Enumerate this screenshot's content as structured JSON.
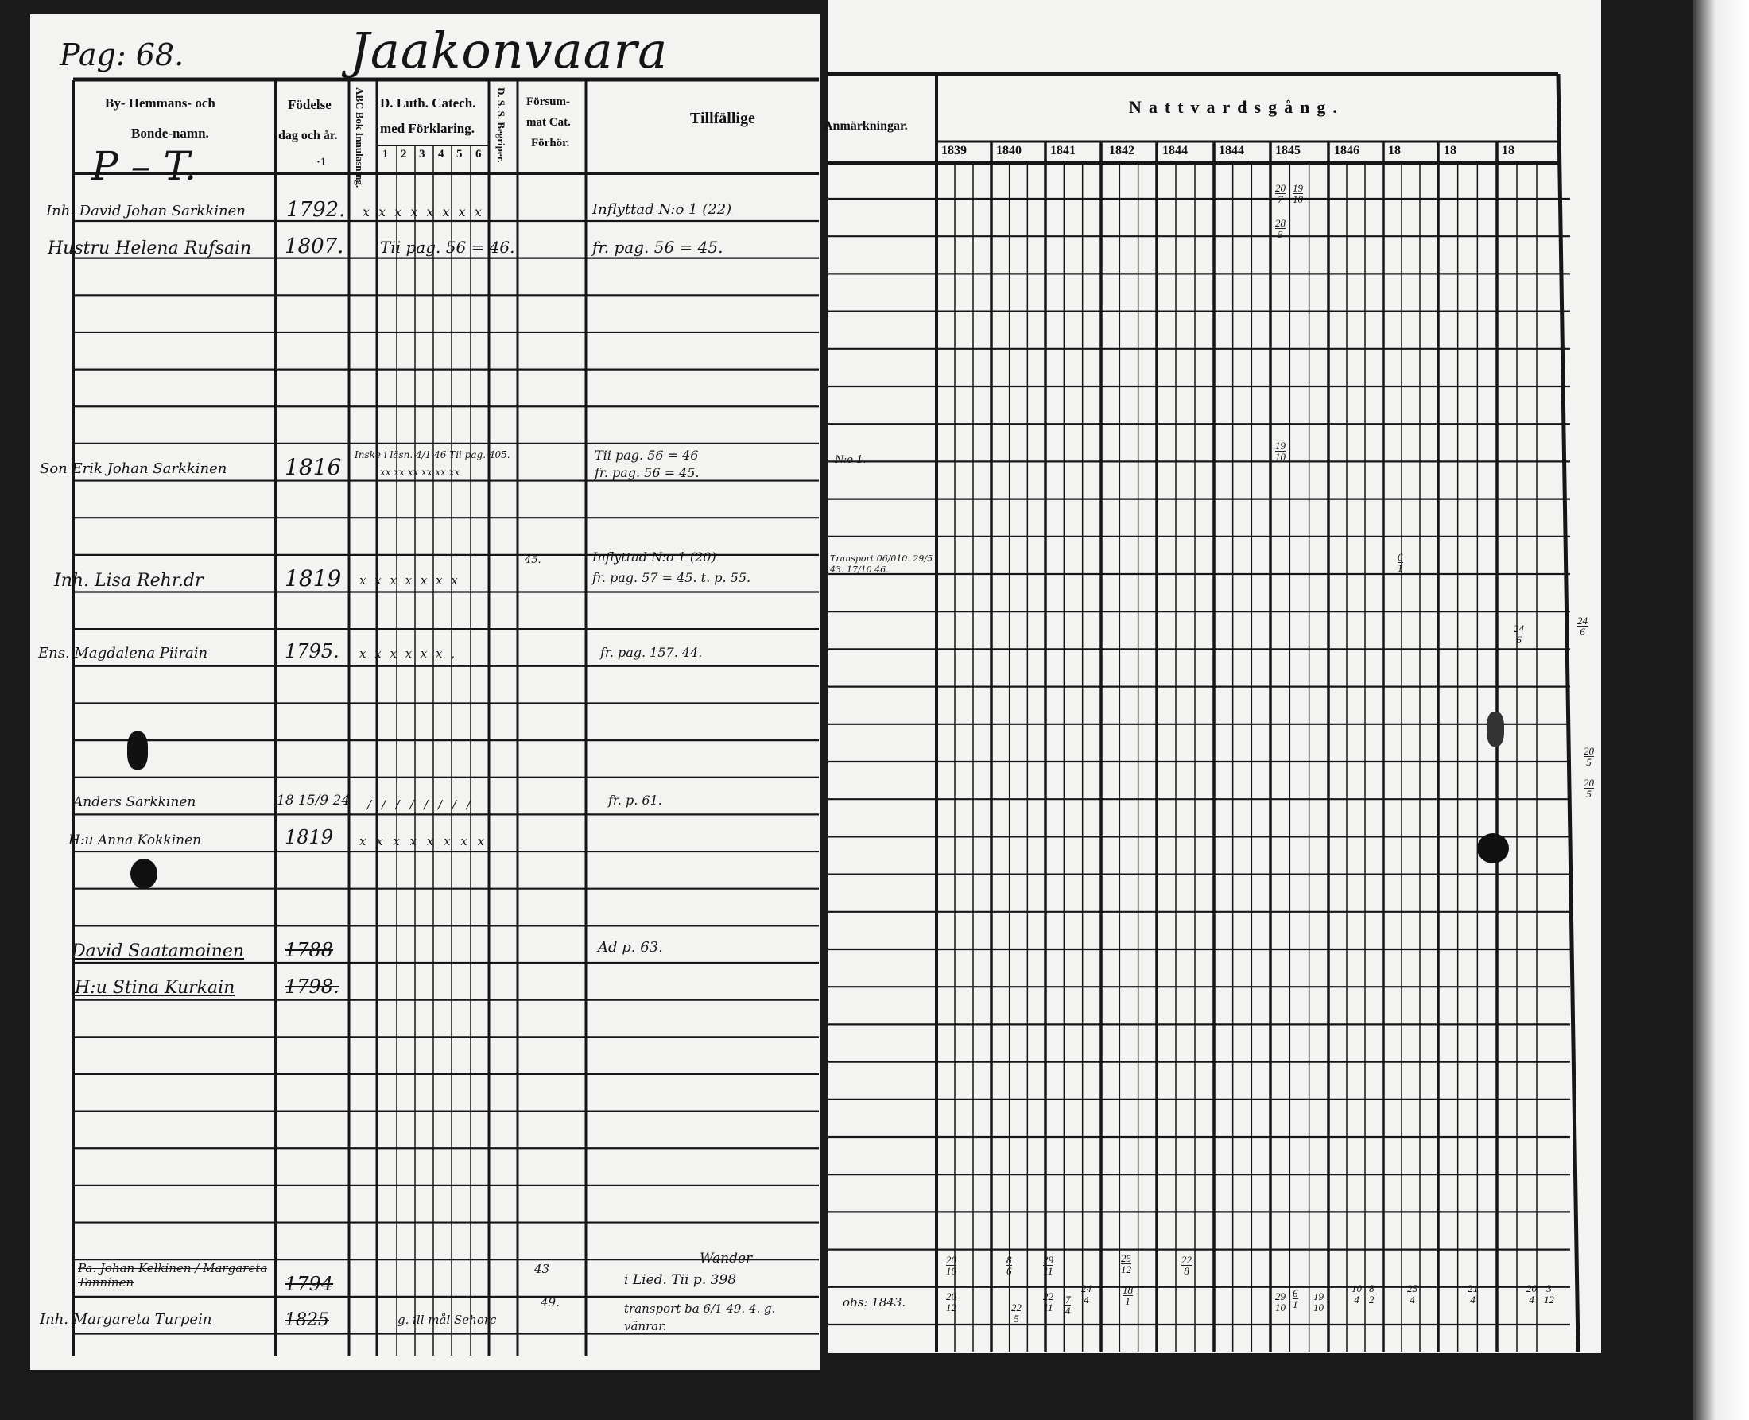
{
  "header": {
    "page_number": "Pag: 68.",
    "village_title": "Jaakonvaara",
    "letter_range": "P – T."
  },
  "columns": {
    "name_line1": "By- Hemmans- och",
    "name_line2": "Bonde-namn.",
    "birth_line1": "Födelse",
    "birth_line2": "dag och år.",
    "birth_mark": "·1",
    "abc": "ABC Bok Innulasning.",
    "catech_line1": "D. Luth. Catech.",
    "catech_line2": "med Förklaring.",
    "catech_numbers": [
      "1",
      "2",
      "3",
      "4",
      "5",
      "6"
    ],
    "dss": "D. S. S. Begriper.",
    "forsummat_line1": "Försum-",
    "forsummat_line2": "mat Cat.",
    "forsummat_line3": "Förhör.",
    "tillfallige": "Tillfällige",
    "anmarkningar": "Anmärkningar.",
    "nattvard": "Nattvardsgång.",
    "years": [
      "1839",
      "1840",
      "1841",
      "1842",
      "1844",
      "1844",
      "1845",
      "1846",
      "18",
      "18",
      "18"
    ]
  },
  "entries": [
    {
      "name": "Inh. David Johan Sarkkinen",
      "birth": "1792.",
      "catech": "x x x x x x x x",
      "tillf": "Inflyttad N:o 1 (22)"
    },
    {
      "name": "Hustru Helena Rufsain",
      "birth": "1807.",
      "catech": "Tii pag. 56 = 46.",
      "tillf": "fr. pag. 56 = 45."
    },
    {
      "name": "Son Erik Johan Sarkkinen",
      "birth": "1816",
      "catech": "Inske i läsn. 4/1 46  Tii pag. 405.",
      "catech2": "xx xx xx xx xx xx",
      "tillf": "Tii pag. 56 = 46",
      "tillf2": "fr. pag. 56 = 45.",
      "anm": "N:o 1."
    },
    {
      "name": "Inh. Lisa Rehr.dr",
      "birth": "1819",
      "catech": "x x x x x x x",
      "forsum": "45.",
      "tillf": "Inflyttad N:o 1 (20)",
      "tillf2": "fr. pag. 57 = 45. t. p. 55.",
      "anm": "Transport 06/010. 29/5 43. 17/10 46."
    },
    {
      "name": "Ens. Magdalena Piirain",
      "birth": "1795.",
      "catech": "x x x x x x ,",
      "tillf": "fr. pag. 157. 44."
    },
    {
      "name": "Anders Sarkkinen",
      "birth": "18 15/9 24",
      "catech": "/ / / / / / / /",
      "tillf": "fr. p. 61."
    },
    {
      "name": "H:u Anna Kokkinen",
      "birth": "1819",
      "catech": "x x x x x x x x"
    },
    {
      "name": "David Saatamoinen",
      "birth": "1788",
      "tillf": "Ad p. 63."
    },
    {
      "name": "H:u Stina Kurkain",
      "birth": "1798."
    },
    {
      "name": "Pa. Johan Kelkinen / Margareta Tanninen",
      "birth": "1794",
      "dss": "43",
      "tillf_top": "Wander",
      "tillf": "i Lied. Tii p. 398"
    },
    {
      "name": "Inh. Margareta Turpein",
      "birth": "1825",
      "catech": "g. ill mål  Sehorc",
      "dss": "49.",
      "tillf": "transport ba 6/1 49. 4. g. vänrar.",
      "anm": "obs: 1843."
    }
  ],
  "communion_marks": [
    [
      "20",
      "7"
    ],
    [
      "19",
      "10"
    ],
    [
      "28",
      "5"
    ],
    [
      "19",
      "10"
    ],
    [
      "6",
      "1"
    ],
    [
      "24",
      "6"
    ],
    [
      "24",
      "6"
    ],
    [
      "20",
      "5"
    ],
    [
      "20",
      "5"
    ],
    [
      "20",
      "10"
    ],
    [
      "8",
      "6"
    ],
    [
      "29",
      "11"
    ],
    [
      "25",
      "12"
    ],
    [
      "22",
      "8"
    ],
    [
      "20",
      "12"
    ],
    [
      "22",
      "5"
    ],
    [
      "22",
      "11"
    ],
    [
      "7",
      "4"
    ],
    [
      "24",
      "4"
    ],
    [
      "18",
      "1"
    ],
    [
      "29",
      "10"
    ],
    [
      "6",
      "1"
    ],
    [
      "19",
      "10"
    ],
    [
      "10",
      "4"
    ],
    [
      "8",
      "2"
    ],
    [
      "25",
      "4"
    ],
    [
      "21",
      "4"
    ],
    [
      "20",
      "4"
    ],
    [
      "3",
      "12"
    ]
  ]
}
